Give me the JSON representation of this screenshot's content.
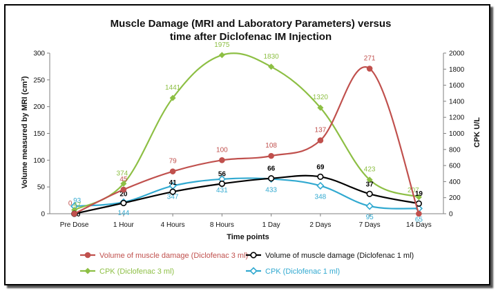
{
  "chart_data": {
    "type": "line",
    "title_line1": "Muscle Damage (MRI and Laboratory Parameters) versus",
    "title_line2": "time after Diclofenac IM Injection",
    "xlabel": "Time points",
    "ylabel_left": "Volume measured by MRI (cm³)",
    "ylabel_right": "CPK U/L",
    "categories": [
      "Pre Dose",
      "1 Hour",
      "4 Hours",
      "8 Hours",
      "1 Day",
      "2 Days",
      "7 Days",
      "14 Days"
    ],
    "ylim_left": [
      0,
      300
    ],
    "yticks_left": [
      "0",
      "50",
      "100",
      "150",
      "200",
      "250",
      "300"
    ],
    "ylim_right": [
      0,
      2000
    ],
    "yticks_right": [
      "0",
      "200",
      "400",
      "600",
      "800",
      "1000",
      "1200",
      "1400",
      "1600",
      "1800",
      "2000"
    ],
    "grid": false,
    "legend_position": "bottom",
    "series": [
      {
        "name": "Volume of muscle damage (Diclofenac 3 ml)",
        "axis": "left",
        "color": "#c0504d",
        "marker": "circle-filled",
        "values": [
          0,
          45,
          79,
          100,
          108,
          137,
          271,
          0
        ],
        "labels": [
          "0",
          "45",
          "79",
          "100",
          "108",
          "137",
          "271",
          ""
        ]
      },
      {
        "name": "Volume of muscle damage (Diclofenac 1 ml)",
        "axis": "left",
        "color": "#000000",
        "marker": "circle-open",
        "values": [
          0,
          20,
          41,
          56,
          66,
          69,
          37,
          19
        ],
        "labels": [
          "0",
          "20",
          "41",
          "56",
          "66",
          "69",
          "37",
          "19"
        ]
      },
      {
        "name": "CPK (Diclofenac 3 ml)",
        "axis": "right",
        "color": "#8dbf44",
        "marker": "diamond-filled",
        "values": [
          47,
          374,
          1441,
          1975,
          1830,
          1320,
          423,
          207
        ],
        "labels": [
          "47",
          "374",
          "1441",
          "1975",
          "1830",
          "1320",
          "423",
          "207"
        ]
      },
      {
        "name": "CPK (Diclofenac 1 ml)",
        "axis": "right",
        "color": "#31a9d0",
        "marker": "diamond-open",
        "values": [
          93,
          144,
          347,
          431,
          433,
          348,
          95,
          65
        ],
        "labels": [
          "93",
          "144",
          "347",
          "431",
          "433",
          "348",
          "95",
          "65"
        ]
      }
    ]
  }
}
